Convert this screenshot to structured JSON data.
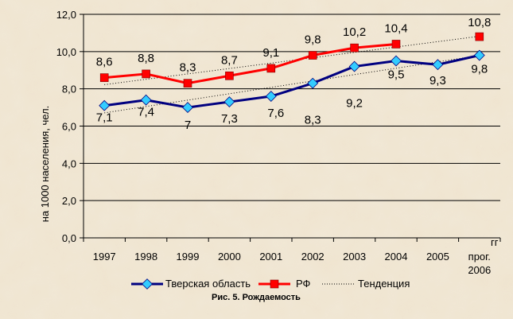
{
  "chart_data": {
    "type": "line",
    "categories": [
      "1997",
      "1998",
      "1999",
      "2000",
      "2001",
      "2002",
      "2003",
      "2004",
      "2005",
      "прог.|2006"
    ],
    "ylabel": "на 1000 населения, чел.",
    "xunit": "гг",
    "ylim": [
      0,
      12
    ],
    "yticks": [
      "0,0",
      "2,0",
      "4,0",
      "6,0",
      "8,0",
      "10,0",
      "12,0"
    ],
    "grid": true,
    "legend_position": "bottom",
    "caption": "Рис. 5. Рождаемость",
    "series": [
      {
        "name": "Тверская область",
        "color": "#000080",
        "marker": "diamond",
        "marker_color": "#33ccff",
        "values": [
          7.1,
          7.4,
          7.0,
          7.3,
          7.6,
          8.3,
          9.2,
          9.5,
          9.3,
          9.8
        ],
        "labels": [
          "7,1",
          "7,4",
          "7",
          "7,3",
          "7,6",
          "8,3",
          "9,2",
          "9,5",
          "9,3",
          "9,8"
        ]
      },
      {
        "name": "РФ",
        "color": "#ff0000",
        "marker": "square",
        "marker_color": "#ff0000",
        "values": [
          8.6,
          8.8,
          8.3,
          8.7,
          9.1,
          9.8,
          10.2,
          10.4,
          null,
          10.8
        ],
        "labels": [
          "8,6",
          "8,8",
          "8,3",
          "8,7",
          "9,1",
          "9,8",
          "10,2",
          "10,4",
          null,
          "10,8"
        ]
      }
    ],
    "trend_legend": "Тенденция"
  }
}
